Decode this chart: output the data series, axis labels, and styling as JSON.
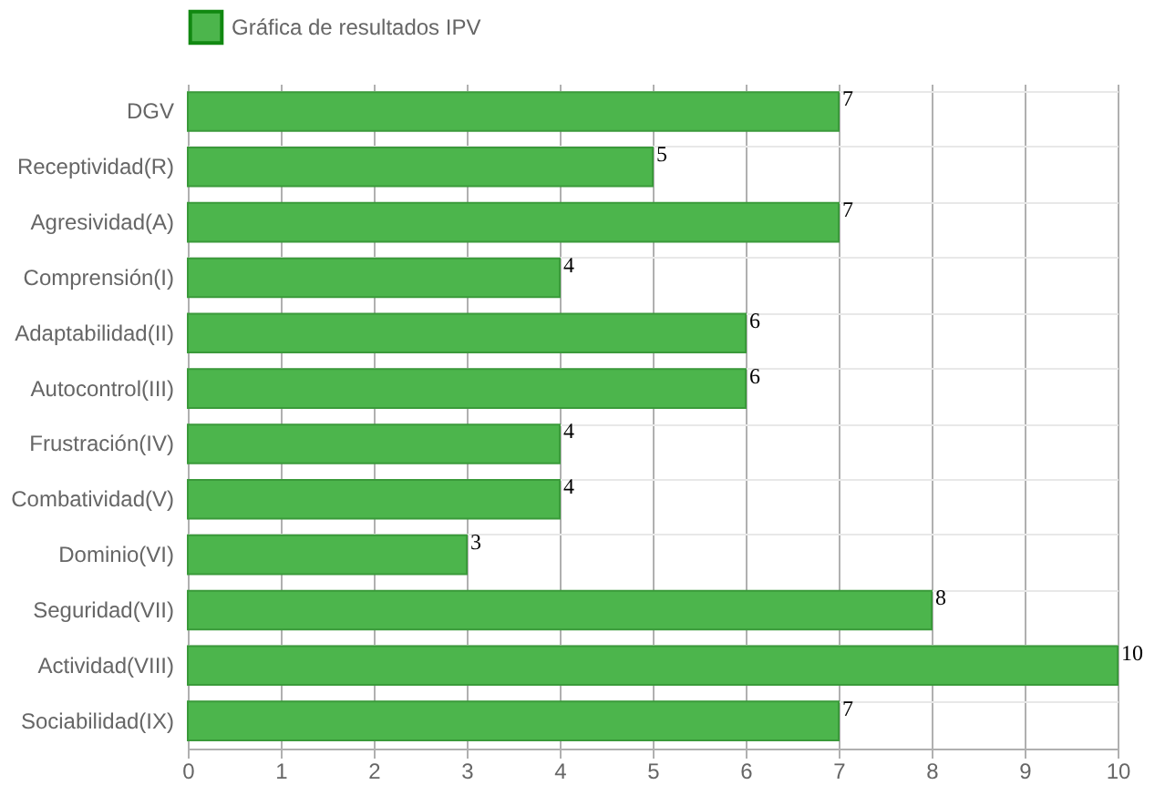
{
  "chart_data": {
    "type": "bar",
    "orientation": "horizontal",
    "categories": [
      "DGV",
      "Receptividad(R)",
      "Agresividad(A)",
      "Comprensión(I)",
      "Adaptabilidad(II)",
      "Autocontrol(III)",
      "Frustración(IV)",
      "Combatividad(V)",
      "Dominio(VI)",
      "Seguridad(VII)",
      "Actividad(VIII)",
      "Sociabilidad(IX)"
    ],
    "series": [
      {
        "name": "Gráfica de resultados IPV",
        "color": "#4cb54c",
        "values": [
          7,
          5,
          7,
          4,
          6,
          6,
          4,
          4,
          3,
          8,
          10,
          7
        ]
      }
    ],
    "xlim": [
      0,
      10
    ],
    "xticks": [
      0,
      1,
      2,
      3,
      4,
      5,
      6,
      7,
      8,
      9,
      10
    ],
    "grid": true,
    "legend": "top",
    "data_labels": true
  }
}
